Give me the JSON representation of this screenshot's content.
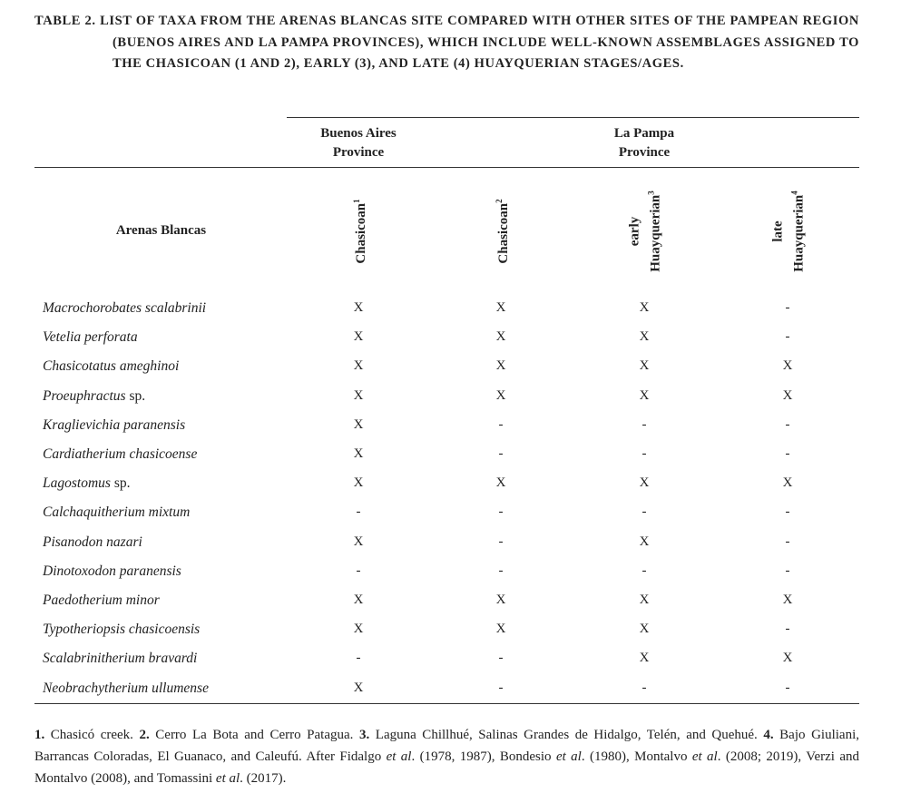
{
  "caption": {
    "label": "TABLE 2.",
    "text": "LIST OF TAXA FROM THE ARENAS BLANCAS SITE COMPARED WITH OTHER SITES OF THE PAMPEAN REGION (BUENOS AIRES AND LA PAMPA PROVINCES), WHICH INCLUDE WELL-KNOWN ASSEMBLAGES ASSIGNED TO THE CHASICOAN (1 AND 2), EARLY (3), AND LATE (4) HUAYQUERIAN STAGES/AGES."
  },
  "table": {
    "group_headers": [
      "Buenos Aires Province",
      "La Pampa Province"
    ],
    "row_header": "Arenas Blancas",
    "columns": [
      {
        "name": "Chasicoan",
        "sup": "1"
      },
      {
        "name": "Chasicoan",
        "sup": "2"
      },
      {
        "name": "early Huayquerian",
        "sup": "3"
      },
      {
        "name": "late Huayquerian",
        "sup": "4"
      }
    ],
    "rows": [
      {
        "taxon": "Macrochorobates scalabrinii",
        "cells": [
          "X",
          "X",
          "X",
          "-"
        ]
      },
      {
        "taxon": "Vetelia perforata",
        "cells": [
          "X",
          "X",
          "X",
          "-"
        ]
      },
      {
        "taxon": "Chasicotatus ameghinoi",
        "cells": [
          "X",
          "X",
          "X",
          "X"
        ]
      },
      {
        "taxon": "Proeuphractus",
        "qualifier": "sp.",
        "cells": [
          "X",
          "X",
          "X",
          "X"
        ]
      },
      {
        "taxon": "Kraglievichia paranensis",
        "cells": [
          "X",
          "-",
          "-",
          "-"
        ]
      },
      {
        "taxon": "Cardiatherium chasicoense",
        "cells": [
          "X",
          "-",
          "-",
          "-"
        ]
      },
      {
        "taxon": "Lagostomus",
        "qualifier": "sp.",
        "cells": [
          "X",
          "X",
          "X",
          "X"
        ]
      },
      {
        "taxon": "Calchaquitherium mixtum",
        "cells": [
          "-",
          "-",
          "-",
          "-"
        ]
      },
      {
        "taxon": "Pisanodon nazari",
        "cells": [
          "X",
          "-",
          "X",
          "-"
        ]
      },
      {
        "taxon": "Dinotoxodon paranensis",
        "cells": [
          "-",
          "-",
          "-",
          "-"
        ]
      },
      {
        "taxon": "Paedotherium minor",
        "cells": [
          "X",
          "X",
          "X",
          "X"
        ]
      },
      {
        "taxon": "Typotheriopsis chasicoensis",
        "cells": [
          "X",
          "X",
          "X",
          "-"
        ]
      },
      {
        "taxon": "Scalabrinitherium bravardi",
        "cells": [
          "-",
          "-",
          "X",
          "X"
        ]
      },
      {
        "taxon": "Neobrachytherium ullumense",
        "cells": [
          "X",
          "-",
          "-",
          "-"
        ]
      }
    ]
  },
  "footnote": [
    {
      "text": "1.",
      "style": "bold"
    },
    {
      "text": " Chasicó creek. ",
      "style": "normal"
    },
    {
      "text": "2.",
      "style": "bold"
    },
    {
      "text": " Cerro La Bota and Cerro Patagua. ",
      "style": "normal"
    },
    {
      "text": "3.",
      "style": "bold"
    },
    {
      "text": " Laguna Chillhué, Salinas Grandes de Hidalgo, Telén, and Quehué. ",
      "style": "normal"
    },
    {
      "text": "4.",
      "style": "bold"
    },
    {
      "text": " Bajo Giuliani, Barrancas Coloradas, El Guanaco, and Caleufú. After Fidalgo ",
      "style": "normal"
    },
    {
      "text": "et al",
      "style": "italic"
    },
    {
      "text": ". (1978, 1987), Bondesio ",
      "style": "normal"
    },
    {
      "text": "et al",
      "style": "italic"
    },
    {
      "text": ". (1980), Montalvo ",
      "style": "normal"
    },
    {
      "text": "et al",
      "style": "italic"
    },
    {
      "text": ". (2008; 2019), Verzi and Montalvo (2008), and Tomassini ",
      "style": "normal"
    },
    {
      "text": "et al",
      "style": "italic"
    },
    {
      "text": ". (2017).",
      "style": "normal"
    }
  ]
}
